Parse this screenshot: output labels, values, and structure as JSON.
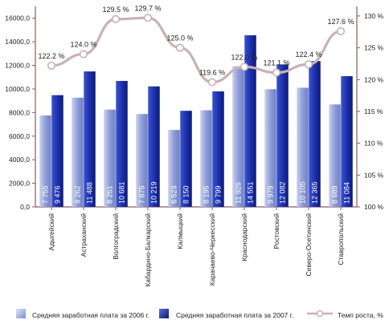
{
  "chart_data": {
    "type": "bar",
    "categories": [
      "Адыгейский",
      "Астраханский",
      "Волгоградский",
      "Кабардино-Балкарский",
      "Калмыцкий",
      "Карачаево-Черкесский",
      "Краснодарский",
      "Ростовский",
      "Северо-Осетинский",
      "Ставропольский"
    ],
    "series": [
      {
        "name": "Средняя заработная плата за 2006 г.",
        "values": [
          7755,
          9262,
          8251,
          7875,
          6523,
          8195,
          11926,
          9979,
          10105,
          8689
        ],
        "labels": [
          "7 755",
          "9 262",
          "8 251",
          "7 875",
          "6 523",
          "8 195",
          "11 926",
          "9 979",
          "10 105",
          "8 689"
        ],
        "color": "#8f9fd6"
      },
      {
        "name": "Средняя заработная плата за 2007 г.",
        "values": [
          9476,
          11488,
          10681,
          10219,
          8150,
          9799,
          14551,
          12082,
          12365,
          11084
        ],
        "labels": [
          "9 476",
          "11 488",
          "10 681",
          "10 219",
          "8 150",
          "9 799",
          "14 551",
          "12 082",
          "12 365",
          "11 084"
        ],
        "color": "#1a2fa8"
      },
      {
        "name": "Темп роста, %",
        "type": "line",
        "axis": "right",
        "values": [
          122.2,
          124.0,
          129.5,
          129.7,
          125.0,
          119.6,
          122.0,
          121.1,
          122.4,
          127.6
        ],
        "labels": [
          "122.2 %",
          "124.0 %",
          "129.5 %",
          "129.7 %",
          "125.0 %",
          "119.6 %",
          "122.0 %",
          "121.1 %",
          "122.4 %",
          "127.6 %"
        ],
        "color": "#d8c8c8"
      }
    ],
    "yticks_left": [
      "0,0",
      "2000,0",
      "4000,0",
      "6000,0",
      "8000,0",
      "10000,0",
      "12000,0",
      "14000,0",
      "16000,0"
    ],
    "yticks_right": [
      "100 %",
      "105 %",
      "110 %",
      "115 %",
      "120 %",
      "125 %",
      "130 %"
    ],
    "ylim_left": [
      0,
      17000
    ],
    "ylim_right": [
      100,
      131.5
    ],
    "legend": {
      "position": "bottom",
      "items": [
        "Средняя заработная плата за 2006 г.",
        "Средняя заработная плата за 2007 г.",
        "Темп роста, %"
      ]
    },
    "grid": false,
    "axis_color": "#8b5a5f"
  }
}
